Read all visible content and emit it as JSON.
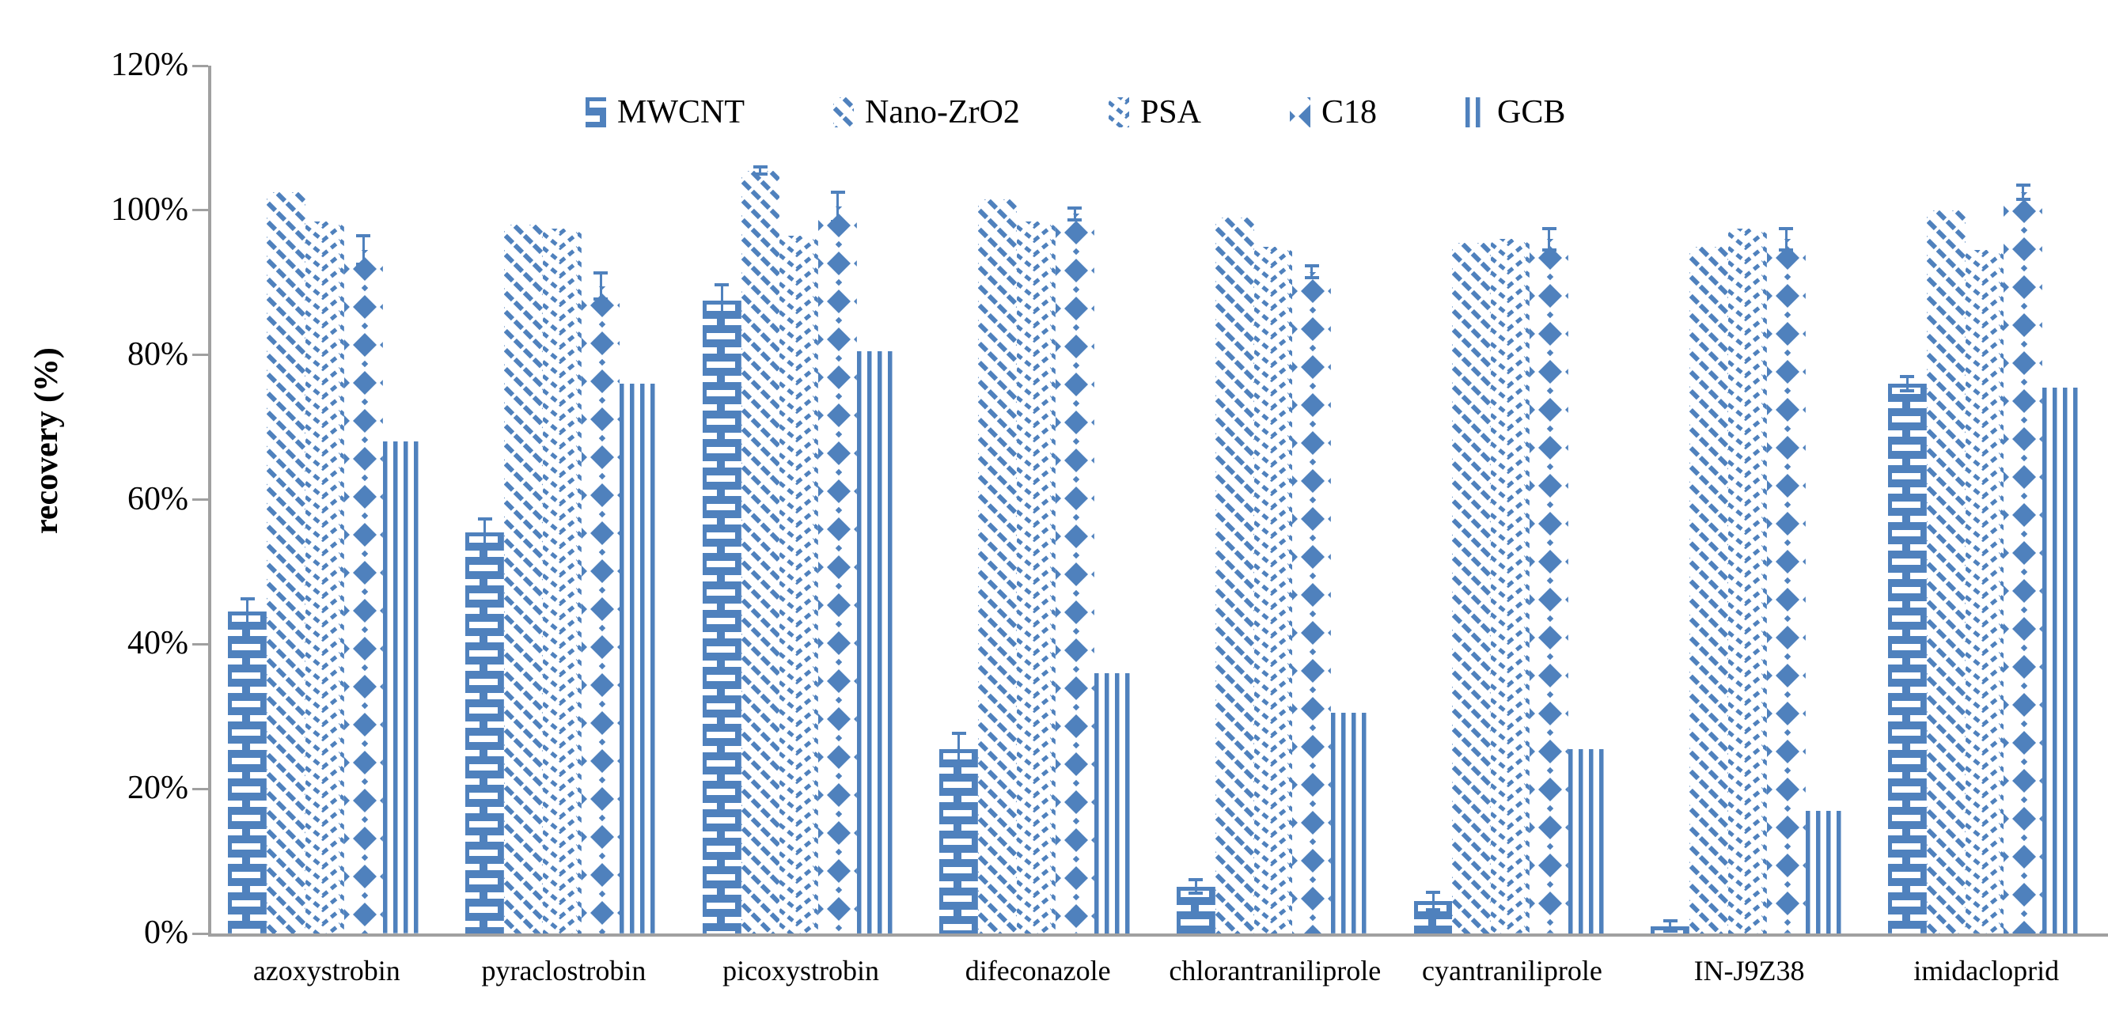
{
  "y_axis": {
    "label": "recovery (%)",
    "tick_labels": [
      "0%",
      "20%",
      "40%",
      "60%",
      "80%",
      "100%",
      "120%"
    ],
    "tick_values": [
      0,
      20,
      40,
      60,
      80,
      100,
      120
    ]
  },
  "legend": {
    "position": "top-center",
    "items": [
      "MWCNT",
      "Nano-ZrO2",
      "PSA",
      "C18",
      "GCB"
    ]
  },
  "chart_data": {
    "type": "bar",
    "title": "",
    "xlabel": "",
    "ylabel": "recovery (%)",
    "ylim": [
      0,
      120
    ],
    "grid": false,
    "categories": [
      "azoxystrobin",
      "pyraclostrobin",
      "picoxystrobin",
      "difeconazole",
      "chlorantraniliprole",
      "cyantraniliprole",
      "IN-J9Z38",
      "imidacloprid"
    ],
    "series": [
      {
        "name": "MWCNT",
        "pattern": "brick",
        "values": [
          44.5,
          55.5,
          87.5,
          25.5,
          6.5,
          4.5,
          1,
          76
        ],
        "errors": [
          1.8,
          1.8,
          2.2,
          2.2,
          0.9,
          1.2,
          0.7,
          1
        ]
      },
      {
        "name": "Nano-ZrO2",
        "pattern": "diagonal",
        "values": [
          102.5,
          98,
          105.5,
          101.5,
          99,
          95.5,
          95,
          100
        ],
        "errors": [
          0,
          0,
          0.5,
          0,
          0,
          0,
          0,
          0
        ]
      },
      {
        "name": "PSA",
        "pattern": "chevron",
        "values": [
          98.5,
          97.5,
          96.5,
          98.5,
          95,
          96,
          97.5,
          94.5
        ],
        "errors": [
          0,
          0,
          0,
          0,
          0,
          0,
          0,
          0
        ]
      },
      {
        "name": "C18",
        "pattern": "diamond",
        "values": [
          94.5,
          89.5,
          100.5,
          99.5,
          91.5,
          96,
          96,
          102.5
        ],
        "errors": [
          2,
          1.8,
          2,
          0.8,
          0.8,
          1.5,
          1.5,
          1
        ]
      },
      {
        "name": "GCB",
        "pattern": "stripes",
        "values": [
          68,
          76,
          80.5,
          36,
          30.5,
          25.5,
          17,
          75.5
        ],
        "errors": [
          0,
          0,
          0,
          0,
          0,
          0,
          0,
          0
        ]
      }
    ],
    "bar_color": "#4f81bd",
    "axis_color": "#a0a0a0",
    "text_color": "#000000"
  }
}
